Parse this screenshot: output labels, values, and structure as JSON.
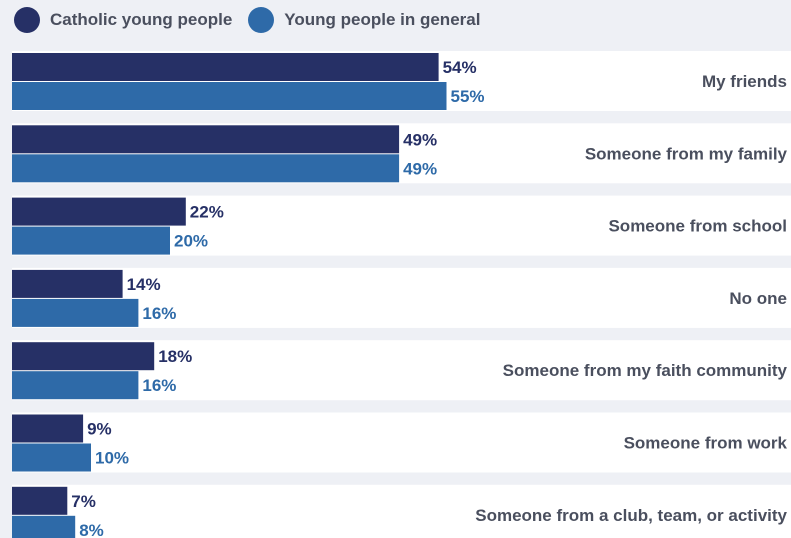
{
  "chart_data": {
    "type": "bar",
    "orientation": "horizontal",
    "legend_position": "top-left",
    "categories": [
      "My friends",
      "Someone from my family",
      "Someone from school",
      "No one",
      "Someone from my faith community",
      "Someone from work",
      "Someone from a club, team, or activity"
    ],
    "series": [
      {
        "name": "Catholic young people",
        "color": "#263066",
        "values": [
          54,
          49,
          22,
          14,
          18,
          9,
          7
        ]
      },
      {
        "name": "Young people in general",
        "color": "#2e6aa8",
        "values": [
          55,
          49,
          20,
          16,
          16,
          10,
          8
        ]
      }
    ],
    "value_suffix": "%",
    "xlim": [
      0,
      100
    ],
    "grid": false
  }
}
